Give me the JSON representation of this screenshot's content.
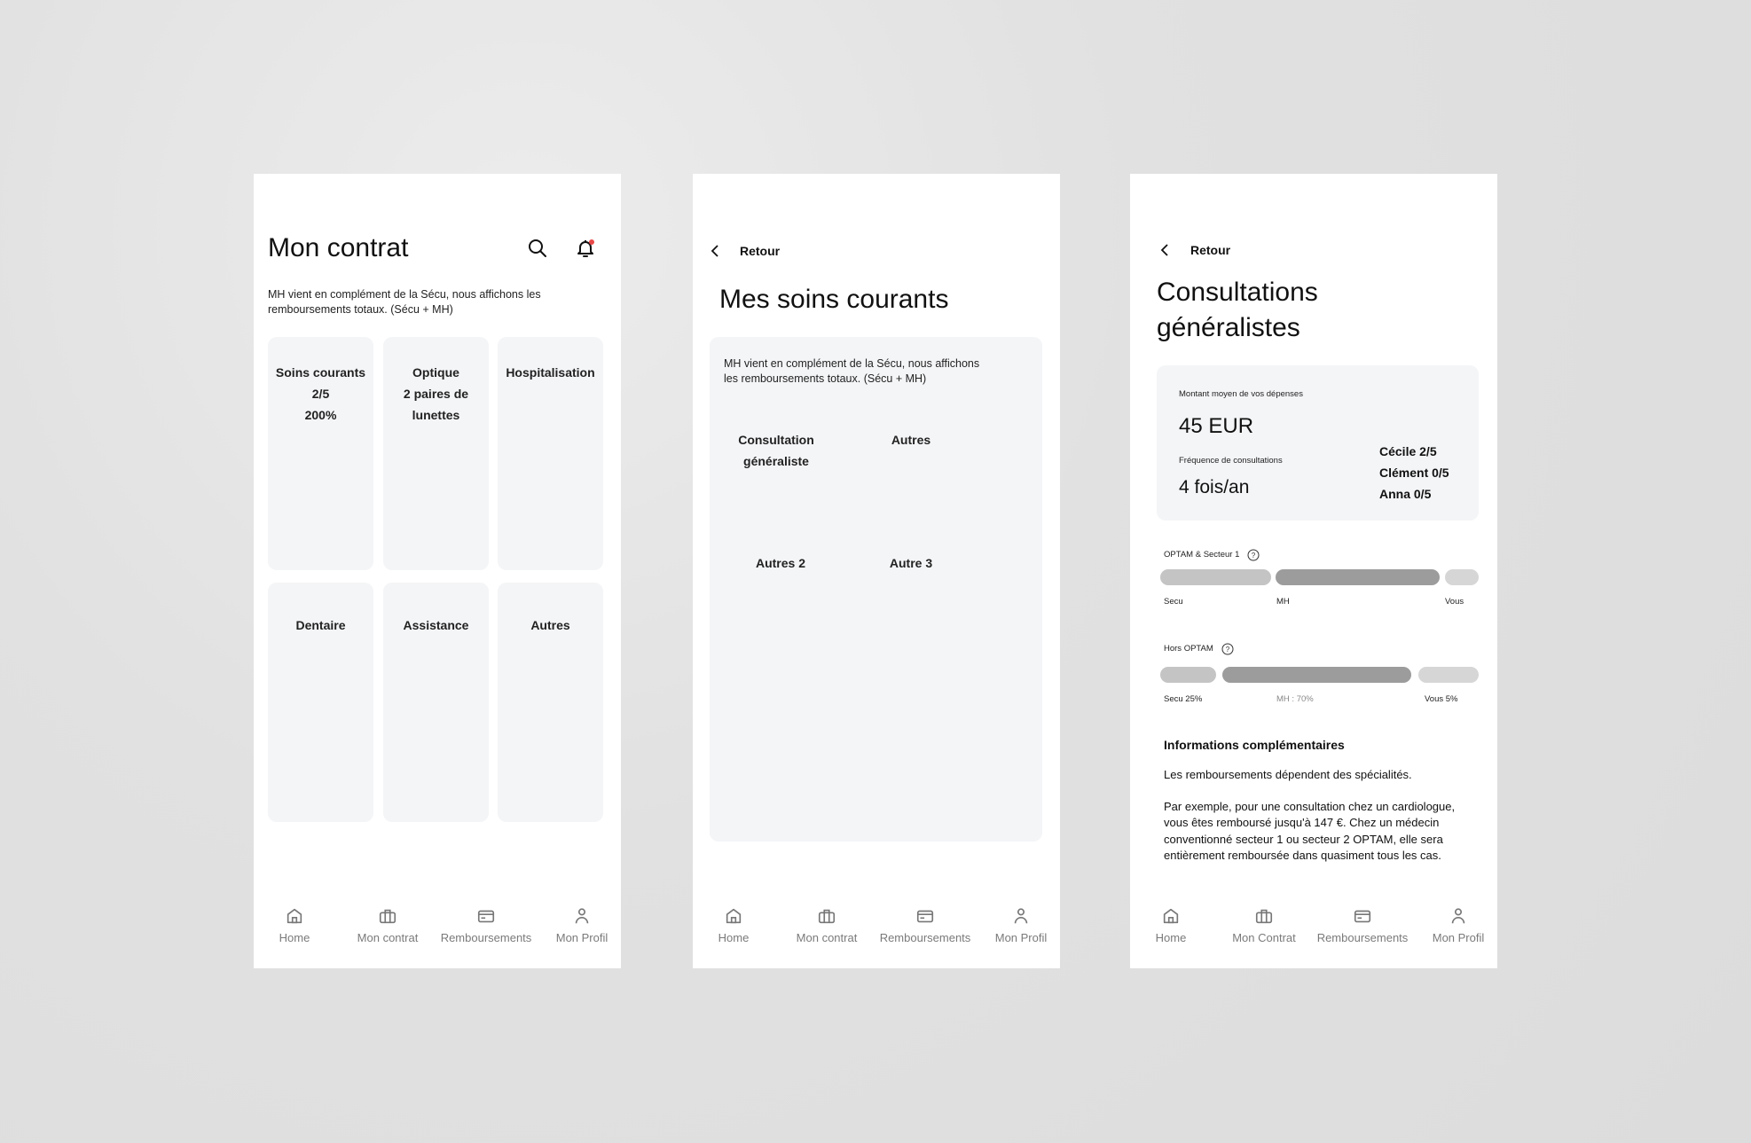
{
  "screens": [
    {
      "title": "Mon contrat",
      "intro": "MH vient en complément de la Sécu, nous affichons les remboursements totaux. (Sécu + MH)",
      "cards": [
        {
          "lines": [
            "Soins courants",
            "2/5",
            "200%"
          ]
        },
        {
          "lines": [
            "Optique",
            "2 paires de",
            "lunettes"
          ]
        },
        {
          "lines": [
            "Hospitalisation"
          ]
        },
        {
          "lines": [
            "Dentaire"
          ]
        },
        {
          "lines": [
            "Assistance"
          ]
        },
        {
          "lines": [
            "Autres"
          ]
        }
      ],
      "icons": {
        "search": "search-icon",
        "notifications": "bell-icon",
        "notification_dot_color": "#e94848"
      },
      "nav": [
        "Home",
        "Mon contrat",
        "Remboursements",
        "Mon Profil"
      ]
    },
    {
      "back": "Retour",
      "title": "Mes soins courants",
      "intro_line1": "MH vient en complément de la Sécu, nous affichons",
      "intro_line2": "les remboursements totaux. (Sécu + MH)",
      "items": [
        {
          "lines": [
            "Consultation",
            "généraliste"
          ]
        },
        {
          "lines": [
            "Autres"
          ]
        },
        {
          "lines": [
            "Autres 2"
          ]
        },
        {
          "lines": [
            "Autre 3"
          ]
        }
      ],
      "nav": [
        "Home",
        "Mon contrat",
        "Remboursements",
        "Mon Profil"
      ]
    },
    {
      "back": "Retour",
      "title_line1": "Consultations",
      "title_line2": "généralistes",
      "summary": {
        "amount_label": "Montant moyen de vos dépenses",
        "amount": "45 EUR",
        "frequency_label": "Fréquence de consultations",
        "frequency": "4 fois/an",
        "members": [
          "Cécile 2/5",
          "Clément 0/5",
          "Anna 0/5"
        ]
      },
      "optam": {
        "label": "OPTAM & Secteur 1",
        "labels": [
          "Secu",
          "MH",
          "Vous"
        ]
      },
      "hors_optam": {
        "label": "Hors OPTAM",
        "labels": [
          "Secu 25%",
          "MH : 70%",
          "Vous 5%"
        ]
      },
      "bar_colors": {
        "secu": "#c4c4c4",
        "mh": "#9c9c9c",
        "vous": "#d6d6d6"
      },
      "info": {
        "heading": "Informations complémentaires",
        "p1": "Les remboursements dépendent des spécialités.",
        "p2_lines": [
          "Par exemple, pour une consultation chez un cardiologue,",
          "vous êtes remboursé jusqu'à 147 €. Chez un médecin",
          "conventionné secteur 1 ou secteur 2 OPTAM, elle sera",
          "entièrement remboursée dans quasiment tous les cas."
        ]
      },
      "nav": [
        "Home",
        "Mon Contrat",
        "Remboursements",
        "Mon Profil"
      ]
    }
  ]
}
